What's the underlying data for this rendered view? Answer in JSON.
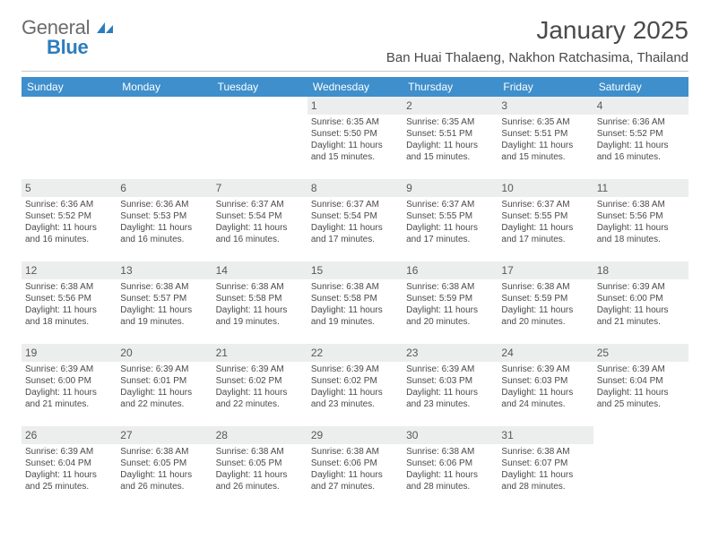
{
  "logo": {
    "word1": "General",
    "word2": "Blue"
  },
  "month_title": "January 2025",
  "location": "Ban Huai Thalaeng, Nakhon Ratchasima, Thailand",
  "header_bg": "#3e8fcc",
  "daynum_bg": "#eceded",
  "background": "#ffffff",
  "text_color": "#4a4a4a",
  "logo_blue": "#2c7dbd",
  "dow": [
    "Sunday",
    "Monday",
    "Tuesday",
    "Wednesday",
    "Thursday",
    "Friday",
    "Saturday"
  ],
  "weeks": [
    [
      {
        "blank": true
      },
      {
        "blank": true
      },
      {
        "blank": true
      },
      {
        "num": "1",
        "sunrise": "6:35 AM",
        "sunset": "5:50 PM",
        "dlh": "11",
        "dlm": "15"
      },
      {
        "num": "2",
        "sunrise": "6:35 AM",
        "sunset": "5:51 PM",
        "dlh": "11",
        "dlm": "15"
      },
      {
        "num": "3",
        "sunrise": "6:35 AM",
        "sunset": "5:51 PM",
        "dlh": "11",
        "dlm": "15"
      },
      {
        "num": "4",
        "sunrise": "6:36 AM",
        "sunset": "5:52 PM",
        "dlh": "11",
        "dlm": "16"
      }
    ],
    [
      {
        "num": "5",
        "sunrise": "6:36 AM",
        "sunset": "5:52 PM",
        "dlh": "11",
        "dlm": "16"
      },
      {
        "num": "6",
        "sunrise": "6:36 AM",
        "sunset": "5:53 PM",
        "dlh": "11",
        "dlm": "16"
      },
      {
        "num": "7",
        "sunrise": "6:37 AM",
        "sunset": "5:54 PM",
        "dlh": "11",
        "dlm": "16"
      },
      {
        "num": "8",
        "sunrise": "6:37 AM",
        "sunset": "5:54 PM",
        "dlh": "11",
        "dlm": "17"
      },
      {
        "num": "9",
        "sunrise": "6:37 AM",
        "sunset": "5:55 PM",
        "dlh": "11",
        "dlm": "17"
      },
      {
        "num": "10",
        "sunrise": "6:37 AM",
        "sunset": "5:55 PM",
        "dlh": "11",
        "dlm": "17"
      },
      {
        "num": "11",
        "sunrise": "6:38 AM",
        "sunset": "5:56 PM",
        "dlh": "11",
        "dlm": "18"
      }
    ],
    [
      {
        "num": "12",
        "sunrise": "6:38 AM",
        "sunset": "5:56 PM",
        "dlh": "11",
        "dlm": "18"
      },
      {
        "num": "13",
        "sunrise": "6:38 AM",
        "sunset": "5:57 PM",
        "dlh": "11",
        "dlm": "19"
      },
      {
        "num": "14",
        "sunrise": "6:38 AM",
        "sunset": "5:58 PM",
        "dlh": "11",
        "dlm": "19"
      },
      {
        "num": "15",
        "sunrise": "6:38 AM",
        "sunset": "5:58 PM",
        "dlh": "11",
        "dlm": "19"
      },
      {
        "num": "16",
        "sunrise": "6:38 AM",
        "sunset": "5:59 PM",
        "dlh": "11",
        "dlm": "20"
      },
      {
        "num": "17",
        "sunrise": "6:38 AM",
        "sunset": "5:59 PM",
        "dlh": "11",
        "dlm": "20"
      },
      {
        "num": "18",
        "sunrise": "6:39 AM",
        "sunset": "6:00 PM",
        "dlh": "11",
        "dlm": "21"
      }
    ],
    [
      {
        "num": "19",
        "sunrise": "6:39 AM",
        "sunset": "6:00 PM",
        "dlh": "11",
        "dlm": "21"
      },
      {
        "num": "20",
        "sunrise": "6:39 AM",
        "sunset": "6:01 PM",
        "dlh": "11",
        "dlm": "22"
      },
      {
        "num": "21",
        "sunrise": "6:39 AM",
        "sunset": "6:02 PM",
        "dlh": "11",
        "dlm": "22"
      },
      {
        "num": "22",
        "sunrise": "6:39 AM",
        "sunset": "6:02 PM",
        "dlh": "11",
        "dlm": "23"
      },
      {
        "num": "23",
        "sunrise": "6:39 AM",
        "sunset": "6:03 PM",
        "dlh": "11",
        "dlm": "23"
      },
      {
        "num": "24",
        "sunrise": "6:39 AM",
        "sunset": "6:03 PM",
        "dlh": "11",
        "dlm": "24"
      },
      {
        "num": "25",
        "sunrise": "6:39 AM",
        "sunset": "6:04 PM",
        "dlh": "11",
        "dlm": "25"
      }
    ],
    [
      {
        "num": "26",
        "sunrise": "6:39 AM",
        "sunset": "6:04 PM",
        "dlh": "11",
        "dlm": "25"
      },
      {
        "num": "27",
        "sunrise": "6:38 AM",
        "sunset": "6:05 PM",
        "dlh": "11",
        "dlm": "26"
      },
      {
        "num": "28",
        "sunrise": "6:38 AM",
        "sunset": "6:05 PM",
        "dlh": "11",
        "dlm": "26"
      },
      {
        "num": "29",
        "sunrise": "6:38 AM",
        "sunset": "6:06 PM",
        "dlh": "11",
        "dlm": "27"
      },
      {
        "num": "30",
        "sunrise": "6:38 AM",
        "sunset": "6:06 PM",
        "dlh": "11",
        "dlm": "28"
      },
      {
        "num": "31",
        "sunrise": "6:38 AM",
        "sunset": "6:07 PM",
        "dlh": "11",
        "dlm": "28"
      },
      {
        "blank": true
      }
    ]
  ],
  "labels": {
    "sunrise": "Sunrise: ",
    "sunset": "Sunset: ",
    "daylight_a": "Daylight: ",
    "daylight_b": " hours and ",
    "daylight_c": " minutes."
  }
}
